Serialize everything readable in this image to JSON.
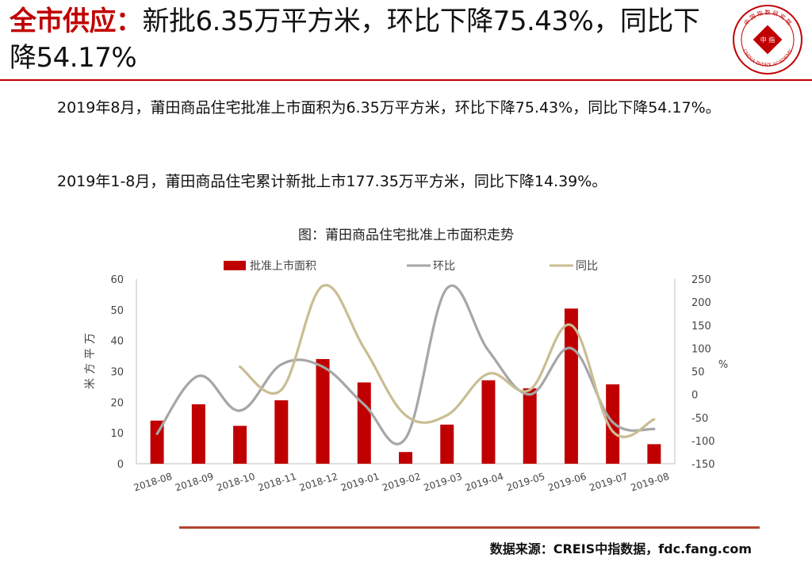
{
  "header": {
    "title_highlight": "全市供应：",
    "title_rest": "新批6.35万平方米，环比下降75.43%，同比下降54.17%"
  },
  "paragraphs": [
    "2019年8月，莆田商品住宅批准上市面积为6.35万平方米，环比下降75.43%，同比下降54.17%。",
    "2019年1-8月，莆田商品住宅累计新批上市177.35万平方米，同比下降14.39%。"
  ],
  "logo": {
    "top_text": "中 国 指 数 研 究 院",
    "bottom_text": "CHINA INDEX ACADEMY",
    "center_text": "中 指"
  },
  "chart_data": {
    "type": "bar",
    "title": "图：莆田商品住宅批准上市面积走势",
    "categories": [
      "2018-08",
      "2018-09",
      "2018-10",
      "2018-11",
      "2018-12",
      "2019-01",
      "2019-02",
      "2019-03",
      "2019-04",
      "2019-05",
      "2019-06",
      "2019-07",
      "2019-08"
    ],
    "ylabel": "万平方米",
    "ylabel_right": "%",
    "ylim": [
      0,
      60
    ],
    "yticks": [
      0,
      10,
      20,
      30,
      40,
      50,
      60
    ],
    "y2lim": [
      -150,
      250
    ],
    "y2ticks": [
      -150,
      -100,
      -50,
      0,
      50,
      100,
      150,
      200,
      250
    ],
    "legend_position": "top",
    "series": [
      {
        "name": "批准上市面积",
        "kind": "bar",
        "axis": "left",
        "color": "#c00000",
        "values": [
          14,
          19.3,
          12.3,
          20.6,
          34,
          26.4,
          3.8,
          12.7,
          27.1,
          24.5,
          50.4,
          25.8,
          6.35
        ]
      },
      {
        "name": "环比",
        "kind": "line",
        "axis": "right",
        "color": "#a6a6a6",
        "values": [
          -85,
          40,
          -35,
          65,
          60,
          -22,
          -95,
          230,
          95,
          0,
          100,
          -60,
          -75
        ]
      },
      {
        "name": "同比",
        "kind": "line",
        "axis": "right",
        "color": "#c9bd93",
        "values": [
          null,
          null,
          60,
          10,
          235,
          100,
          -45,
          -45,
          45,
          10,
          150,
          -80,
          -54
        ]
      }
    ]
  },
  "footer": {
    "source": "数据来源：CREIS中指数据，fdc.fang.com"
  }
}
